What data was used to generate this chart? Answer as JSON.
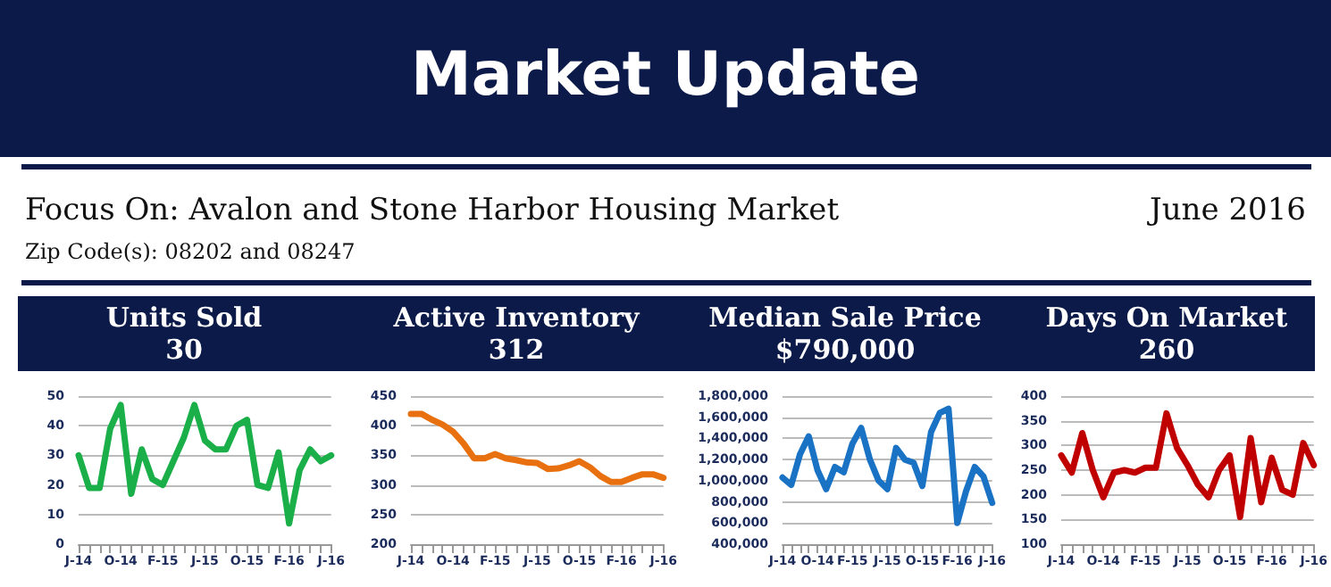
{
  "chart_data": [
    {
      "type": "line",
      "title": "Units Sold",
      "subtitle": "30",
      "annotations": [
        "Market Update",
        "Focus On: Avalon and Stone Harbor Housing Market",
        "June 2016",
        "Zip Code(s): 08202 and 08247"
      ],
      "categories": [
        "J-14",
        null,
        null,
        null,
        "O-14",
        null,
        null,
        null,
        "F-15",
        null,
        null,
        null,
        "J-15",
        null,
        null,
        null,
        "O-15",
        null,
        null,
        null,
        "F-16",
        null,
        null,
        null,
        "J-16"
      ],
      "series": [
        {
          "color": "#1aaf48",
          "values": [
            30,
            19,
            19,
            39,
            47,
            17,
            32,
            22,
            20,
            28,
            36,
            47,
            35,
            32,
            32,
            40,
            42,
            20,
            19,
            31,
            7,
            25,
            32,
            28,
            30
          ]
        }
      ],
      "ylim": [
        0,
        50
      ],
      "yticks": [
        0,
        10,
        20,
        30,
        40,
        50
      ],
      "grid": "y"
    },
    {
      "type": "line",
      "title": "Active Inventory",
      "subtitle": "312",
      "categories": [
        "J-14",
        null,
        null,
        null,
        "O-14",
        null,
        null,
        null,
        "F-15",
        null,
        null,
        null,
        "J-15",
        null,
        null,
        null,
        "O-15",
        null,
        null,
        null,
        "F-16",
        null,
        null,
        null,
        "J-16"
      ],
      "series": [
        {
          "color": "#e8700e",
          "values": [
            420,
            420,
            410,
            402,
            390,
            370,
            345,
            345,
            352,
            345,
            342,
            338,
            337,
            327,
            328,
            333,
            340,
            330,
            315,
            305,
            305,
            312,
            318,
            318,
            312
          ]
        }
      ],
      "ylim": [
        200,
        450
      ],
      "yticks": [
        200,
        250,
        300,
        350,
        400,
        450
      ],
      "grid": "y"
    },
    {
      "type": "line",
      "title": "Median Sale Price",
      "subtitle": "$790,000",
      "categories": [
        "J-14",
        null,
        null,
        null,
        "O-14",
        null,
        null,
        null,
        "F-15",
        null,
        null,
        null,
        "J-15",
        null,
        null,
        null,
        "O-15",
        null,
        null,
        null,
        "F-16",
        null,
        null,
        null,
        "J-16"
      ],
      "series": [
        {
          "color": "#1a72c4",
          "values": [
            1030000,
            960000,
            1250000,
            1420000,
            1100000,
            920000,
            1130000,
            1080000,
            1350000,
            1500000,
            1200000,
            1000000,
            920000,
            1310000,
            1200000,
            1170000,
            950000,
            1460000,
            1640000,
            1680000,
            600000,
            900000,
            1130000,
            1040000,
            790000
          ]
        }
      ],
      "ylim": [
        400000,
        1800000
      ],
      "yticks": [
        {
          "value": 400000,
          "label": "400,000"
        },
        {
          "value": 600000,
          "label": "600,000"
        },
        {
          "value": 800000,
          "label": "800,000"
        },
        {
          "value": 1000000,
          "label": "1,000,000"
        },
        {
          "value": 1200000,
          "label": "1,200,000"
        },
        {
          "value": 1400000,
          "label": "1,400,000"
        },
        {
          "value": 1600000,
          "label": "1,600,000"
        },
        {
          "value": 1800000,
          "label": "1,800,000"
        }
      ],
      "grid": "y"
    },
    {
      "type": "line",
      "title": "Days On Market",
      "subtitle": "260",
      "categories": [
        "J-14",
        null,
        null,
        null,
        "O-14",
        null,
        null,
        null,
        "F-15",
        null,
        null,
        null,
        "J-15",
        null,
        null,
        null,
        "O-15",
        null,
        null,
        null,
        "F-16",
        null,
        null,
        null,
        "J-16"
      ],
      "series": [
        {
          "color": "#c00000",
          "values": [
            280,
            245,
            325,
            250,
            195,
            245,
            250,
            245,
            255,
            255,
            365,
            295,
            260,
            220,
            195,
            250,
            280,
            155,
            315,
            185,
            275,
            210,
            200,
            305,
            260
          ]
        }
      ],
      "ylim": [
        100,
        400
      ],
      "yticks": [
        100,
        150,
        200,
        250,
        300,
        350,
        400
      ],
      "grid": "y"
    }
  ]
}
